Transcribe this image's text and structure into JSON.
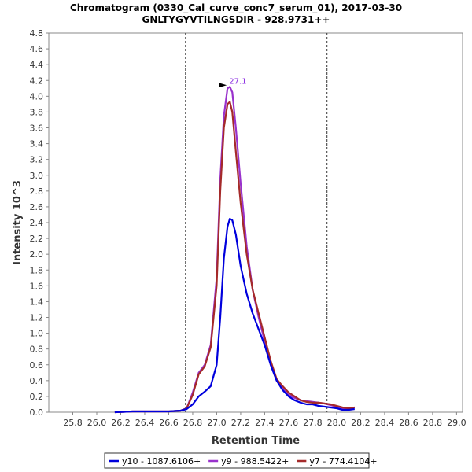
{
  "chart_data": {
    "type": "line",
    "title_line1": "Chromatogram (0330_Cal_curve_conc7_serum_01), 2017-03-30",
    "title_line2": "GNLTYGYVTILNGSDIR - 928.9731++",
    "xlabel": "Retention Time",
    "ylabel": "Intensity 10^3",
    "xlim": [
      25.6,
      29.05
    ],
    "ylim": [
      0,
      4.8
    ],
    "x_ticks": [
      "25.8",
      "26.0",
      "26.2",
      "26.4",
      "26.6",
      "26.8",
      "27.0",
      "27.2",
      "27.4",
      "27.6",
      "27.8",
      "28.0",
      "28.2",
      "28.4",
      "28.6",
      "28.8",
      "29.0"
    ],
    "y_ticks": [
      "0.0",
      "0.2",
      "0.4",
      "0.6",
      "0.8",
      "1.0",
      "1.2",
      "1.4",
      "1.6",
      "1.8",
      "2.0",
      "2.2",
      "2.4",
      "2.6",
      "2.8",
      "3.0",
      "3.2",
      "3.4",
      "3.6",
      "3.8",
      "4.0",
      "4.2",
      "4.4",
      "4.6",
      "4.8"
    ],
    "integration_bounds": [
      26.74,
      27.92
    ],
    "peak_annotation": {
      "label": "27.1",
      "x": 27.11,
      "y": 4.12,
      "color": "#8a2be2"
    },
    "series": [
      {
        "name": "y10 - 1087.6106+",
        "color": "#0000dd",
        "x": [
          26.15,
          26.3,
          26.45,
          26.6,
          26.7,
          26.75,
          26.8,
          26.85,
          26.9,
          26.95,
          27.0,
          27.03,
          27.06,
          27.09,
          27.11,
          27.13,
          27.16,
          27.2,
          27.25,
          27.3,
          27.35,
          27.4,
          27.45,
          27.5,
          27.55,
          27.6,
          27.65,
          27.7,
          27.75,
          27.8,
          27.85,
          27.9,
          27.95,
          28.0,
          28.05,
          28.1,
          28.15
        ],
        "y": [
          0.0,
          0.01,
          0.01,
          0.01,
          0.02,
          0.04,
          0.1,
          0.2,
          0.26,
          0.33,
          0.6,
          1.2,
          1.95,
          2.35,
          2.45,
          2.43,
          2.25,
          1.85,
          1.5,
          1.25,
          1.05,
          0.85,
          0.6,
          0.4,
          0.28,
          0.2,
          0.15,
          0.12,
          0.1,
          0.1,
          0.08,
          0.07,
          0.06,
          0.05,
          0.03,
          0.03,
          0.04
        ]
      },
      {
        "name": "y9 - 988.5422+",
        "color": "#9932cc",
        "x": [
          26.15,
          26.3,
          26.45,
          26.6,
          26.7,
          26.75,
          26.8,
          26.85,
          26.9,
          26.95,
          27.0,
          27.03,
          27.06,
          27.09,
          27.11,
          27.13,
          27.16,
          27.2,
          27.25,
          27.3,
          27.35,
          27.4,
          27.45,
          27.5,
          27.55,
          27.6,
          27.65,
          27.7,
          27.75,
          27.8,
          27.85,
          27.9,
          27.95,
          28.0,
          28.05,
          28.1,
          28.15
        ],
        "y": [
          0.0,
          0.01,
          0.01,
          0.01,
          0.02,
          0.05,
          0.25,
          0.5,
          0.6,
          0.85,
          1.7,
          2.95,
          3.75,
          4.1,
          4.12,
          4.05,
          3.6,
          2.9,
          2.1,
          1.55,
          1.2,
          0.9,
          0.6,
          0.4,
          0.3,
          0.22,
          0.18,
          0.15,
          0.14,
          0.13,
          0.12,
          0.11,
          0.09,
          0.07,
          0.05,
          0.05,
          0.06
        ]
      },
      {
        "name": "y7 - 774.4104+",
        "color": "#a52a2a",
        "x": [
          26.15,
          26.3,
          26.45,
          26.6,
          26.7,
          26.75,
          26.8,
          26.85,
          26.9,
          26.95,
          27.0,
          27.03,
          27.06,
          27.09,
          27.11,
          27.13,
          27.16,
          27.2,
          27.25,
          27.3,
          27.35,
          27.4,
          27.45,
          27.5,
          27.55,
          27.6,
          27.65,
          27.7,
          27.75,
          27.8,
          27.85,
          27.9,
          27.95,
          28.0,
          28.05,
          28.1,
          28.15
        ],
        "y": [
          0.0,
          0.01,
          0.01,
          0.01,
          0.02,
          0.05,
          0.22,
          0.48,
          0.58,
          0.82,
          1.6,
          2.8,
          3.6,
          3.9,
          3.93,
          3.8,
          3.3,
          2.65,
          2.0,
          1.55,
          1.25,
          0.95,
          0.65,
          0.42,
          0.33,
          0.25,
          0.2,
          0.15,
          0.13,
          0.12,
          0.12,
          0.11,
          0.1,
          0.08,
          0.06,
          0.05,
          0.06
        ]
      }
    ]
  }
}
